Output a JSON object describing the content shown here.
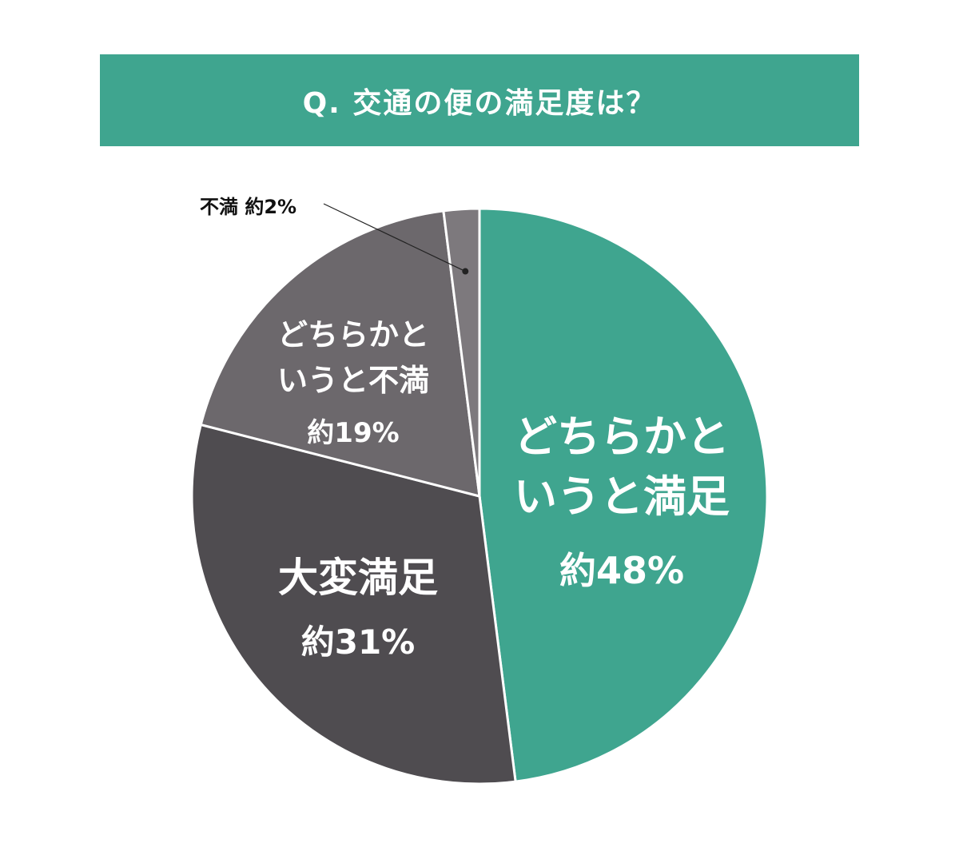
{
  "title": "Q. 交通の便の満足度は？",
  "colors": {
    "title_bg": "#3fa58f",
    "title_text": "#ffffff"
  },
  "chart_data": {
    "type": "pie",
    "title": "Q. 交通の便の満足度は？",
    "start_angle_deg": 0,
    "direction": "clockwise",
    "slices": [
      {
        "name": "どちらかというと満足",
        "label_lines": [
          "どちらかと",
          "いうと満足"
        ],
        "value_label": "約48%",
        "value": 48,
        "color": "#3fa58f"
      },
      {
        "name": "大変満足",
        "label_lines": [
          "大変満足"
        ],
        "value_label": "約31%",
        "value": 31,
        "color": "#4f4c50"
      },
      {
        "name": "どちらかというと不満",
        "label_lines": [
          "どちらかと",
          "いうと不満"
        ],
        "value_label": "約19%",
        "value": 19,
        "color": "#6c686c"
      },
      {
        "name": "不満",
        "label_lines": [],
        "value_label": "約2%",
        "value": 2,
        "color": "#7d797d",
        "callout": "不満 約2%"
      }
    ]
  }
}
